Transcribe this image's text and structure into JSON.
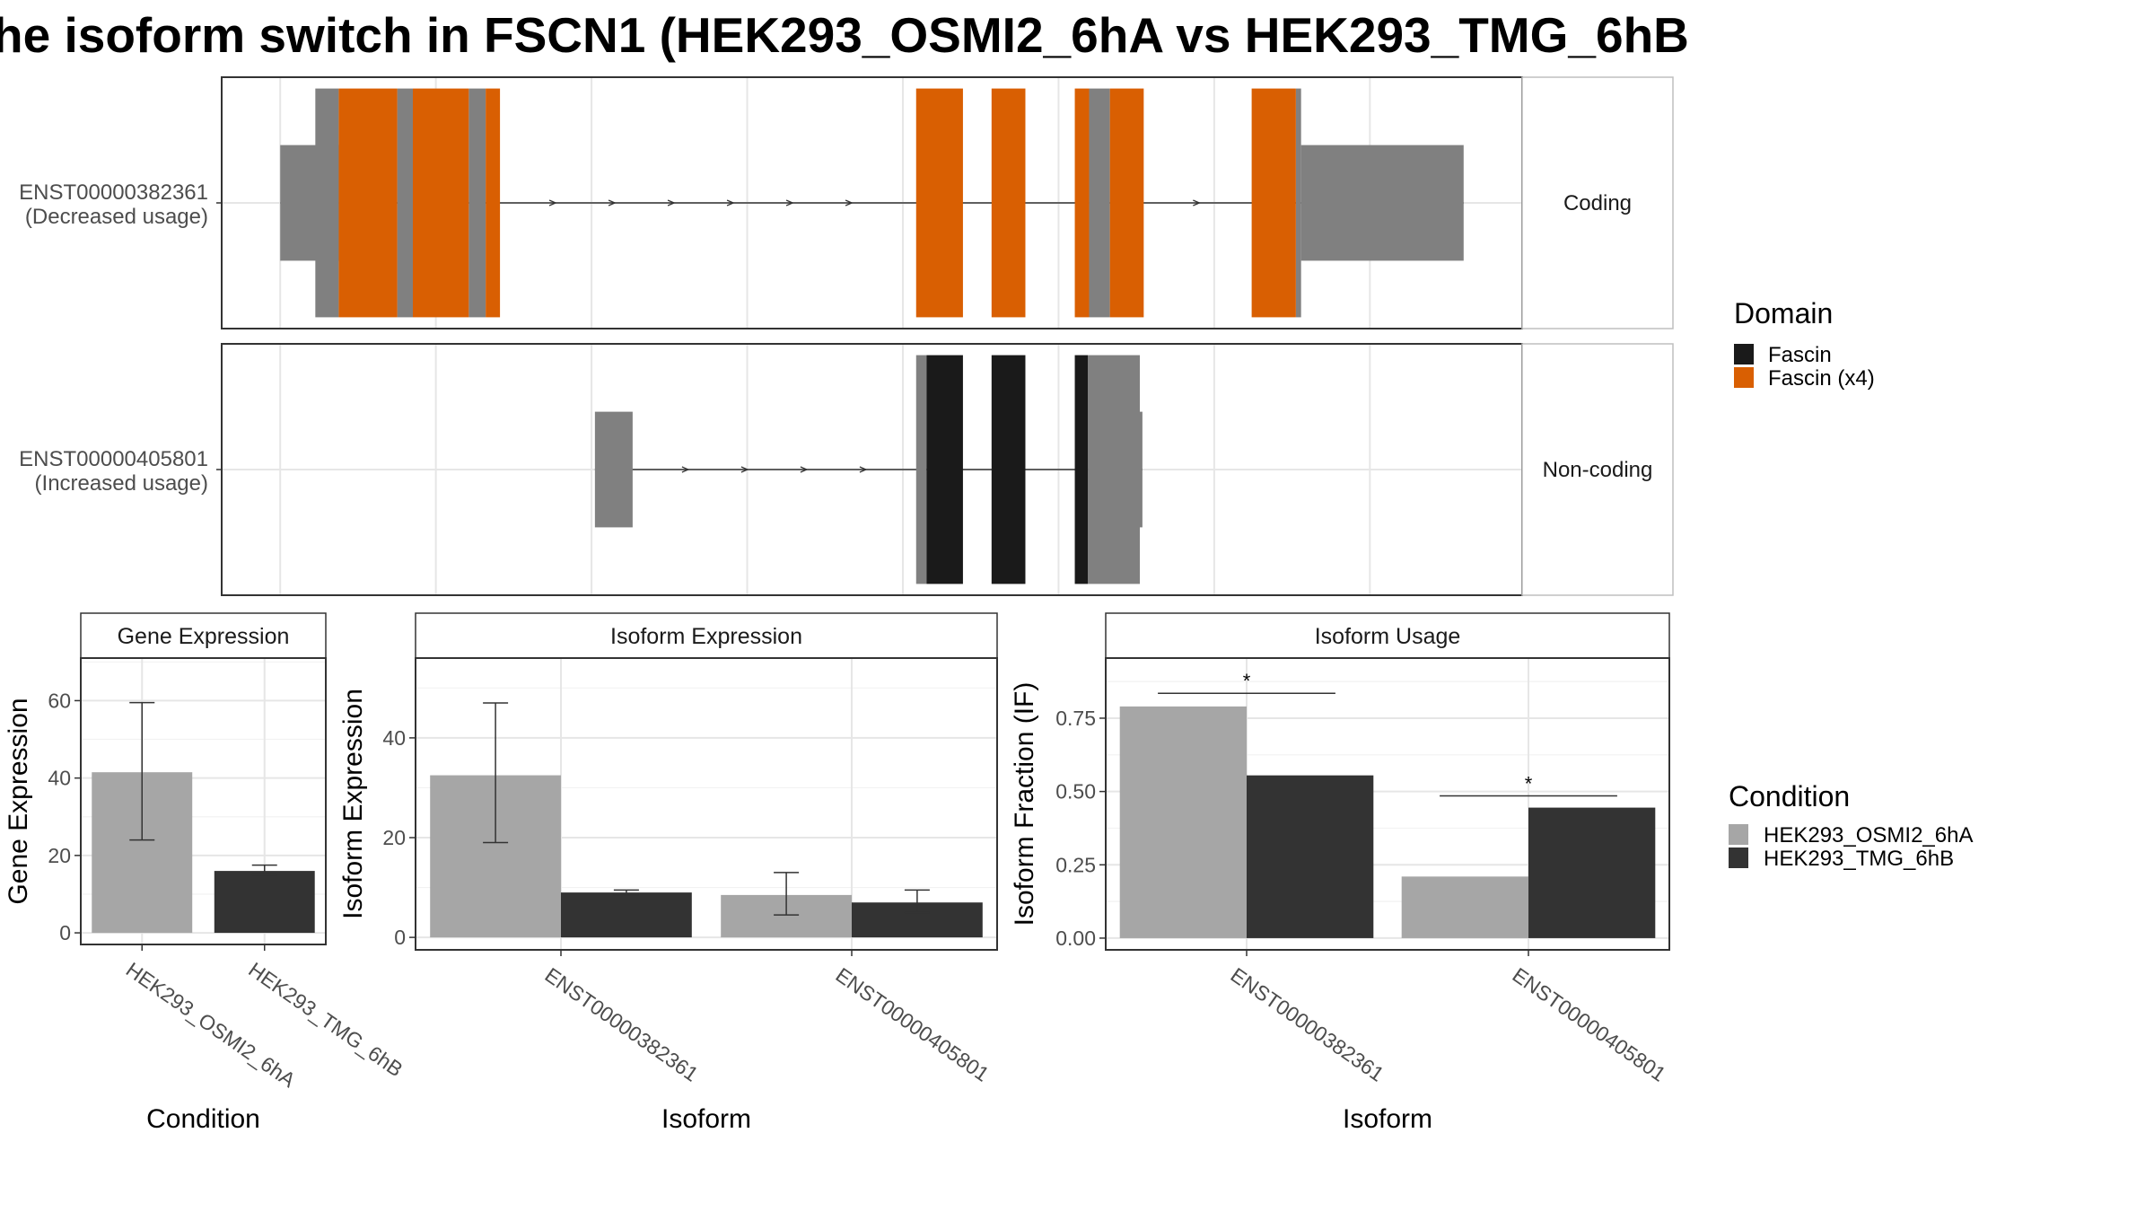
{
  "title": "he isoform switch in FSCN1 (HEK293_OSMI2_6hA vs HEK293_TMG_6hB",
  "chart_data": [
    {
      "type": "transcript-structure",
      "panel": "isoform-structures",
      "transcripts": [
        {
          "id": "ENST00000382361",
          "usage_label": "(Decreased usage)",
          "facet": "Coding",
          "segments": [
            {
              "start": 0.045,
              "end": 0.09,
              "kind": "utr"
            },
            {
              "start": 0.072,
              "end": 0.09,
              "kind": "cds"
            },
            {
              "start": 0.09,
              "end": 0.135,
              "kind": "domain",
              "domain": "Fascin (x4)"
            },
            {
              "start": 0.135,
              "end": 0.147,
              "kind": "cds"
            },
            {
              "start": 0.147,
              "end": 0.19,
              "kind": "domain",
              "domain": "Fascin (x4)"
            },
            {
              "start": 0.19,
              "end": 0.203,
              "kind": "cds"
            },
            {
              "start": 0.203,
              "end": 0.214,
              "kind": "domain",
              "domain": "Fascin (x4)"
            },
            {
              "start": 0.534,
              "end": 0.57,
              "kind": "domain",
              "domain": "Fascin (x4)"
            },
            {
              "start": 0.592,
              "end": 0.618,
              "kind": "domain",
              "domain": "Fascin (x4)"
            },
            {
              "start": 0.656,
              "end": 0.667,
              "kind": "domain",
              "domain": "Fascin (x4)"
            },
            {
              "start": 0.667,
              "end": 0.683,
              "kind": "cds"
            },
            {
              "start": 0.683,
              "end": 0.709,
              "kind": "domain",
              "domain": "Fascin (x4)"
            },
            {
              "start": 0.792,
              "end": 0.826,
              "kind": "domain",
              "domain": "Fascin (x4)"
            },
            {
              "start": 0.826,
              "end": 0.83,
              "kind": "cds"
            },
            {
              "start": 0.83,
              "end": 0.955,
              "kind": "utr"
            }
          ]
        },
        {
          "id": "ENST00000405801",
          "usage_label": "(Increased usage)",
          "facet": "Non-coding",
          "segments": [
            {
              "start": 0.287,
              "end": 0.316,
              "kind": "utr"
            },
            {
              "start": 0.534,
              "end": 0.542,
              "kind": "cds"
            },
            {
              "start": 0.542,
              "end": 0.57,
              "kind": "domain",
              "domain": "Fascin"
            },
            {
              "start": 0.592,
              "end": 0.618,
              "kind": "domain",
              "domain": "Fascin"
            },
            {
              "start": 0.656,
              "end": 0.666,
              "kind": "domain",
              "domain": "Fascin"
            },
            {
              "start": 0.666,
              "end": 0.706,
              "kind": "cds"
            },
            {
              "start": 0.706,
              "end": 0.708,
              "kind": "utr"
            }
          ]
        }
      ],
      "legend": {
        "title": "Domain",
        "placement": "right",
        "entries": [
          {
            "label": "Fascin",
            "color": "#1a1a1a"
          },
          {
            "label": "Fascin (x4)",
            "color": "#d95f02"
          }
        ]
      }
    },
    {
      "type": "bar",
      "panel": "Gene Expression",
      "title": "Gene Expression",
      "xlabel": "Condition",
      "ylabel": "Gene Expression",
      "categories": [
        "HEK293_OSMI2_6hA",
        "HEK293_TMG_6hB"
      ],
      "values": [
        41.5,
        16
      ],
      "error_low": [
        24,
        15
      ],
      "error_high": [
        59.5,
        17.5
      ],
      "colors": [
        "#a6a6a6",
        "#333333"
      ],
      "ylim": [
        -3,
        71
      ],
      "yticks": [
        0,
        20,
        40,
        60
      ]
    },
    {
      "type": "bar",
      "panel": "Isoform Expression",
      "title": "Isoform Expression",
      "xlabel": "Isoform",
      "ylabel": "Isoform Expression",
      "categories": [
        "ENST00000382361",
        "ENST00000405801"
      ],
      "series": [
        {
          "values": [
            32.5,
            8.5
          ],
          "error_low": [
            19,
            4.5
          ],
          "error_high": [
            47,
            13
          ],
          "color": "#a6a6a6"
        },
        {
          "values": [
            9,
            7
          ],
          "error_low": [
            8.5,
            5
          ],
          "error_high": [
            9.5,
            9.5
          ],
          "color": "#333333"
        }
      ],
      "ylim": [
        -2.5,
        56
      ],
      "yticks": [
        0,
        20,
        40
      ]
    },
    {
      "type": "bar",
      "panel": "Isoform Usage",
      "title": "Isoform Usage",
      "xlabel": "Isoform",
      "ylabel": "Isoform Fraction (IF)",
      "categories": [
        "ENST00000382361",
        "ENST00000405801"
      ],
      "series": [
        {
          "values": [
            0.79,
            0.21
          ],
          "color": "#a6a6a6"
        },
        {
          "values": [
            0.555,
            0.445
          ],
          "color": "#333333"
        }
      ],
      "significance": [
        {
          "category": "ENST00000382361",
          "y": 0.835,
          "label": "*"
        },
        {
          "category": "ENST00000405801",
          "y": 0.485,
          "label": "*"
        }
      ],
      "ylim": [
        -0.04,
        0.955
      ],
      "yticks": [
        "0.00",
        "0.25",
        "0.50",
        "0.75"
      ]
    }
  ],
  "condition_legend": {
    "title": "Condition",
    "placement": "right",
    "entries": [
      {
        "label": "HEK293_OSMI2_6hA",
        "color": "#a6a6a6"
      },
      {
        "label": "HEK293_TMG_6hB",
        "color": "#333333"
      }
    ]
  }
}
